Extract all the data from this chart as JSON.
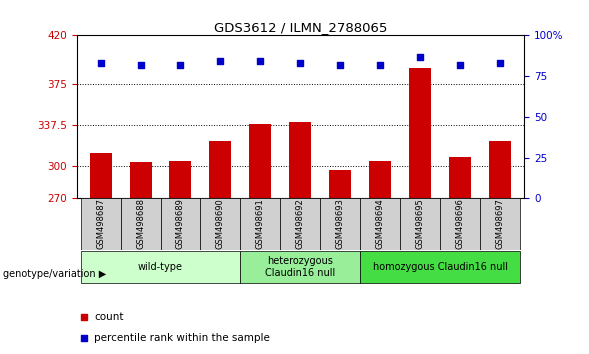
{
  "title": "GDS3612 / ILMN_2788065",
  "samples": [
    "GSM498687",
    "GSM498688",
    "GSM498689",
    "GSM498690",
    "GSM498691",
    "GSM498692",
    "GSM498693",
    "GSM498694",
    "GSM498695",
    "GSM498696",
    "GSM498697"
  ],
  "bar_values": [
    312,
    303,
    304,
    323,
    338,
    340,
    296,
    304,
    390,
    308,
    323
  ],
  "percentile_values": [
    83,
    82,
    82,
    84,
    84,
    83,
    82,
    82,
    87,
    82,
    83
  ],
  "ylim_left": [
    270,
    420
  ],
  "ylim_right": [
    0,
    100
  ],
  "yticks_left": [
    270,
    300,
    337.5,
    375,
    420
  ],
  "ytick_labels_left": [
    "270",
    "300",
    "337.5",
    "375",
    "420"
  ],
  "yticks_right": [
    0,
    25,
    50,
    75,
    100
  ],
  "ytick_labels_right": [
    "0",
    "25",
    "50",
    "75",
    "100%"
  ],
  "bar_color": "#cc0000",
  "dot_color": "#0000cc",
  "groups": [
    {
      "label": "wild-type",
      "start": 0,
      "end": 3,
      "color": "#ccffcc"
    },
    {
      "label": "heterozygous\nClaudin16 null",
      "start": 4,
      "end": 6,
      "color": "#99ee99"
    },
    {
      "label": "homozygous Claudin16 null",
      "start": 7,
      "end": 10,
      "color": "#44dd44"
    }
  ],
  "legend_items": [
    {
      "color": "#cc0000",
      "label": "count"
    },
    {
      "color": "#0000cc",
      "label": "percentile rank within the sample"
    }
  ],
  "group_label": "genotype/variation",
  "dotted_lines": [
    300,
    337.5,
    375
  ],
  "background_color": "#ffffff"
}
